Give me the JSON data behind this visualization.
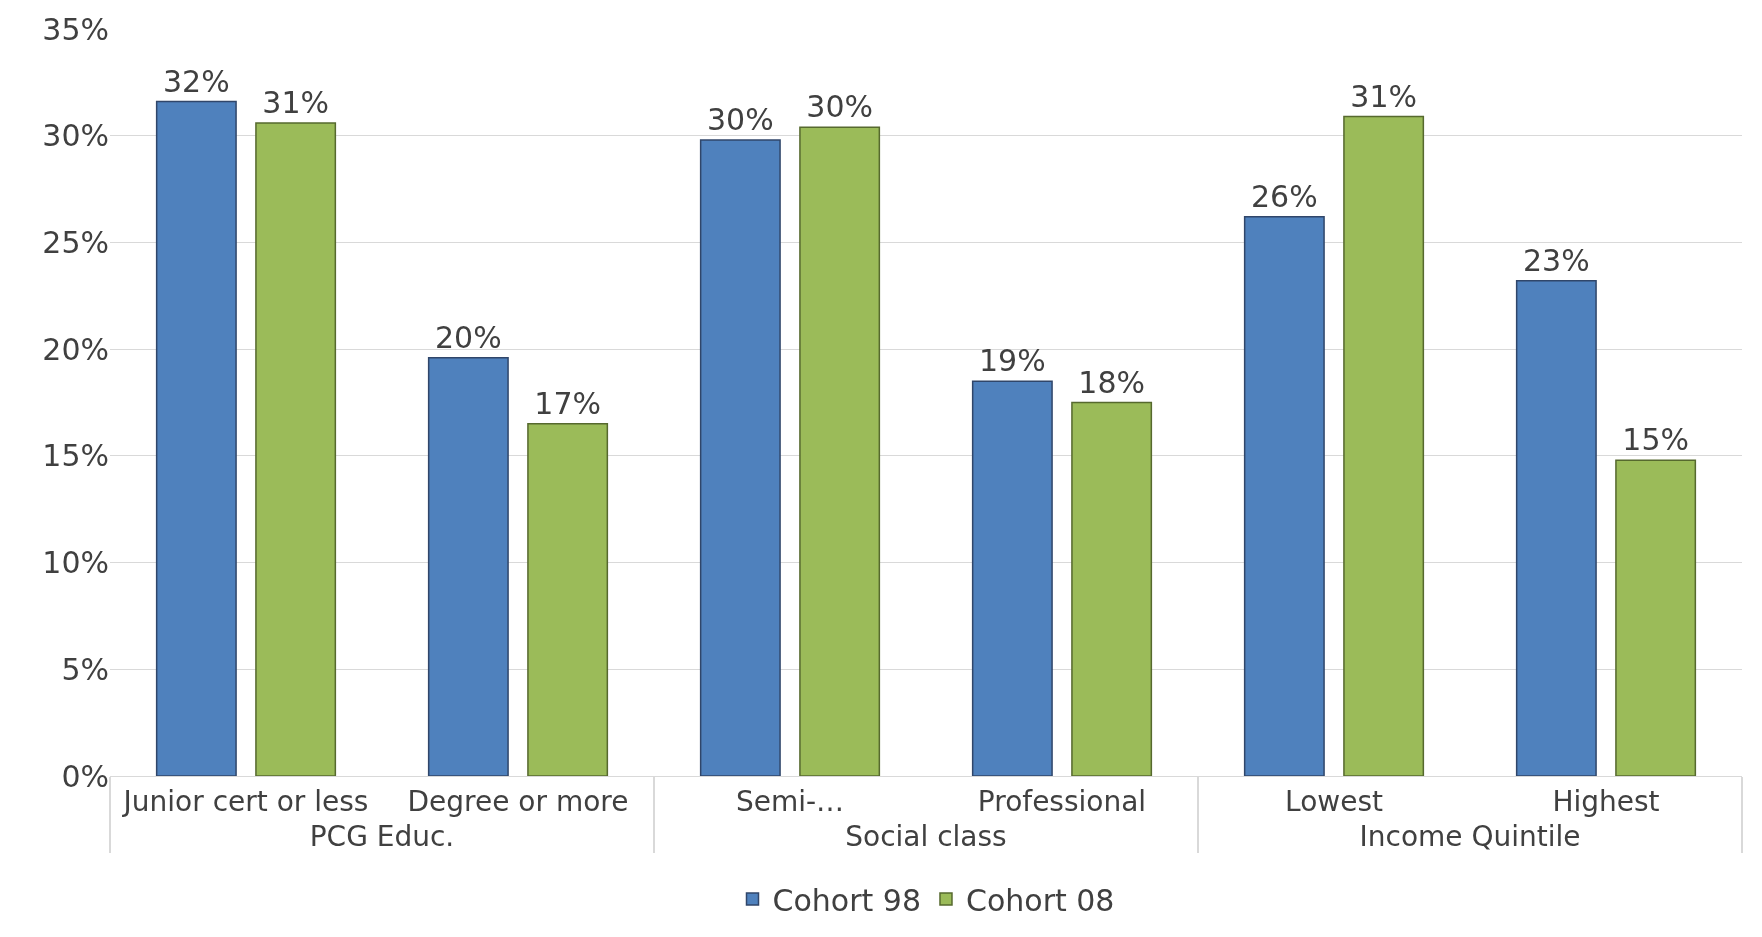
{
  "chart_data": {
    "type": "bar",
    "categories": [
      "Junior cert or less",
      "Degree or more",
      "Semi-…",
      "Professional",
      "Lowest",
      "Highest"
    ],
    "annotations": [
      "PCG Educ.",
      "Social class",
      "Income Quintile"
    ],
    "series": [
      {
        "name": "Cohort 98",
        "color": "#4f81bd",
        "values": [
          31.6,
          19.6,
          29.8,
          18.5,
          26.2,
          23.2
        ],
        "value_labels": [
          "32%",
          "20%",
          "30%",
          "19%",
          "26%",
          "23%"
        ]
      },
      {
        "name": "Cohort 08",
        "color": "#9bbb59",
        "values": [
          30.6,
          16.5,
          30.4,
          17.5,
          30.9,
          14.8
        ],
        "value_labels": [
          "31%",
          "17%",
          "30%",
          "18%",
          "31%",
          "15%"
        ]
      }
    ],
    "ylim": [
      0,
      35
    ],
    "yticks": [
      {
        "value": 0,
        "label": "0%"
      },
      {
        "value": 5,
        "label": "5%"
      },
      {
        "value": 10,
        "label": "10%"
      },
      {
        "value": 15,
        "label": "15%"
      },
      {
        "value": 20,
        "label": "20%"
      },
      {
        "value": 25,
        "label": "25%"
      },
      {
        "value": 30,
        "label": "30%"
      },
      {
        "value": 35,
        "label": "35%"
      }
    ],
    "grid": "y",
    "legend": "bottom"
  }
}
